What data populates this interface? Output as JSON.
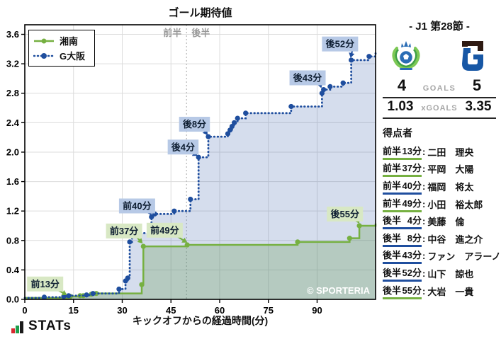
{
  "chart_data": {
    "type": "line",
    "title": "ゴール期待値",
    "xlabel": "キックオフからの経過時間(分)",
    "watermark": "© SPORTERIA",
    "xlim": [
      0,
      108
    ],
    "ylim": [
      0,
      3.73
    ],
    "x_ticks": [
      0,
      15,
      30,
      45,
      60,
      75,
      90
    ],
    "y_ticks": [
      0.0,
      0.4,
      0.8,
      1.2,
      1.6,
      2.0,
      2.4,
      2.8,
      3.2,
      3.6
    ],
    "halftime_x": 49.8,
    "half_labels": {
      "first": "前半",
      "second": "後半"
    },
    "grid": true,
    "legend_position": "upper-left",
    "series": [
      {
        "name": "湘南",
        "team": "home",
        "style": "solid",
        "points": [
          [
            0,
            0.02,
            0
          ],
          [
            13,
            0.03,
            1
          ],
          [
            14,
            0.04,
            1
          ],
          [
            17,
            0.05,
            1
          ],
          [
            18,
            0.05,
            1
          ],
          [
            20.5,
            0.07,
            1
          ],
          [
            22,
            0.08,
            1
          ],
          [
            36,
            0.2,
            1
          ],
          [
            36.5,
            0.72,
            1
          ],
          [
            50,
            0.74,
            1
          ],
          [
            84,
            0.78,
            1
          ],
          [
            100,
            0.83,
            1
          ],
          [
            103,
            1.0,
            1
          ],
          [
            108,
            1.03,
            0
          ]
        ]
      },
      {
        "name": "G大阪",
        "team": "away",
        "style": "dotted",
        "points": [
          [
            0,
            0.02,
            0
          ],
          [
            6,
            0.03,
            1
          ],
          [
            12,
            0.04,
            1
          ],
          [
            13.5,
            0.05,
            1
          ],
          [
            19,
            0.06,
            1
          ],
          [
            21,
            0.08,
            1
          ],
          [
            29,
            0.14,
            1
          ],
          [
            31,
            0.25,
            1
          ],
          [
            31.7,
            0.29,
            1
          ],
          [
            32.3,
            0.78,
            1
          ],
          [
            33,
            0.9,
            1
          ],
          [
            39,
            1.12,
            1
          ],
          [
            40,
            1.16,
            1
          ],
          [
            46,
            1.2,
            1
          ],
          [
            51,
            1.36,
            1
          ],
          [
            53.5,
            1.93,
            1
          ],
          [
            56.5,
            2.21,
            1
          ],
          [
            62.5,
            2.25,
            1
          ],
          [
            63.2,
            2.3,
            1
          ],
          [
            63.8,
            2.35,
            1
          ],
          [
            64.5,
            2.4,
            1
          ],
          [
            65.5,
            2.46,
            1
          ],
          [
            68,
            2.53,
            1
          ],
          [
            82,
            2.62,
            1
          ],
          [
            91.5,
            2.8,
            1
          ],
          [
            92,
            2.85,
            1
          ],
          [
            94,
            2.89,
            1
          ],
          [
            98,
            2.94,
            1
          ],
          [
            100.5,
            3.25,
            1
          ],
          [
            106,
            3.3,
            1
          ],
          [
            108,
            3.35,
            0
          ]
        ]
      }
    ],
    "annotations": [
      {
        "text": "前13分",
        "team": "home",
        "label": [
          0.7,
          0.31
        ],
        "target": [
          13,
          0.06
        ]
      },
      {
        "text": "前37分",
        "team": "home",
        "label": [
          25.0,
          1.03
        ],
        "target": [
          36.3,
          0.76
        ]
      },
      {
        "text": "前40分",
        "team": "away",
        "label": [
          29.0,
          1.37
        ],
        "target": [
          39.0,
          1.14
        ]
      },
      {
        "text": "前49分",
        "team": "home",
        "label": [
          37.5,
          1.04
        ],
        "target": [
          50.0,
          0.77
        ]
      },
      {
        "text": "後4分",
        "team": "away",
        "label": [
          44.0,
          2.17
        ],
        "target": [
          53.2,
          1.95
        ]
      },
      {
        "text": "後8分",
        "team": "away",
        "label": [
          47.5,
          2.48
        ],
        "target": [
          56.3,
          2.23
        ]
      },
      {
        "text": "後43分",
        "team": "away",
        "label": [
          81.5,
          3.11
        ],
        "target": [
          91.3,
          2.87
        ]
      },
      {
        "text": "後52分",
        "team": "away",
        "label": [
          91.5,
          3.57
        ],
        "target": [
          100.3,
          3.28
        ]
      },
      {
        "text": "後55分",
        "team": "home",
        "label": [
          93.0,
          1.26
        ],
        "target": [
          103.0,
          1.03
        ]
      }
    ]
  },
  "scoreboard": {
    "title": "- J1 第28節 -",
    "home_team": "湘南",
    "away_team": "G大阪",
    "goals": {
      "home": "4",
      "label": "GOALS",
      "away": "5"
    },
    "xgoals": {
      "home": "1.03",
      "label": "xGOALS",
      "away": "3.35"
    },
    "scorers_title": "得点者",
    "scorers": [
      {
        "half": "前半",
        "minute": "13",
        "suffix": "分",
        "name": "二田　理央",
        "team": "home"
      },
      {
        "half": "前半",
        "minute": "37",
        "suffix": "分",
        "name": "平岡　大陽",
        "team": "home"
      },
      {
        "half": "前半",
        "minute": "40",
        "suffix": "分",
        "name": "福岡　将太",
        "team": "away"
      },
      {
        "half": "前半",
        "minute": "49",
        "suffix": "分",
        "name": "小田　裕太郎",
        "team": "home"
      },
      {
        "half": "後半",
        "minute": "4",
        "suffix": "分",
        "name": "美藤　倫",
        "team": "away"
      },
      {
        "half": "後半",
        "minute": "8",
        "suffix": "分",
        "name": "中谷　進之介",
        "team": "away"
      },
      {
        "half": "後半",
        "minute": "43",
        "suffix": "分",
        "name": "ファン　アラーノ",
        "team": "away"
      },
      {
        "half": "後半",
        "minute": "52",
        "suffix": "分",
        "name": "山下　諒也",
        "team": "away"
      },
      {
        "half": "後半",
        "minute": "55",
        "suffix": "分",
        "name": "大岩　一貴",
        "team": "home"
      }
    ]
  },
  "footer": {
    "logo_text": "STATs"
  },
  "colors": {
    "home": "#76b041",
    "away": "#1f4e9e",
    "home_fill": "rgba(118,176,65,0.30)",
    "away_fill": "rgba(63,98,174,0.22)",
    "home_label_bg": "#d8e8c4",
    "away_label_bg": "#b7c9e6",
    "grid": "#dcdcdc",
    "divider": "#bbbbbb",
    "half_text": "#999999",
    "muted": "#a6a6a6",
    "logo_red": "#d7282f",
    "logo_green": "#1e9e4b",
    "ink": "#111111"
  }
}
